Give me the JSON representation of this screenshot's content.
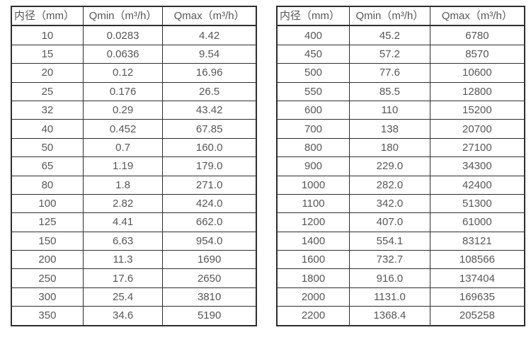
{
  "colors": {
    "background": "#ffffff",
    "border": "#2e2e2e",
    "text": "#575757"
  },
  "tables": [
    {
      "name": "flow-rate-table-small-diameters",
      "headers": [
        "内径（mm）",
        "Qmin（m³/h）",
        "Qmax（m³/h）"
      ],
      "rows": [
        [
          "10",
          "0.0283",
          "4.42"
        ],
        [
          "15",
          "0.0636",
          "9.54"
        ],
        [
          "20",
          "0.12",
          "16.96"
        ],
        [
          "25",
          "0.176",
          "26.5"
        ],
        [
          "32",
          "0.29",
          "43.42"
        ],
        [
          "40",
          "0.452",
          "67.85"
        ],
        [
          "50",
          "0.7",
          "160.0"
        ],
        [
          "65",
          "1.19",
          "179.0"
        ],
        [
          "80",
          "1.8",
          "271.0"
        ],
        [
          "100",
          "2.82",
          "424.0"
        ],
        [
          "125",
          "4.41",
          "662.0"
        ],
        [
          "150",
          "6.63",
          "954.0"
        ],
        [
          "200",
          "11.3",
          "1690"
        ],
        [
          "250",
          "17.6",
          "2650"
        ],
        [
          "300",
          "25.4",
          "3810"
        ],
        [
          "350",
          "34.6",
          "5190"
        ]
      ]
    },
    {
      "name": "flow-rate-table-large-diameters",
      "headers": [
        "内径（mm）",
        "Qmin（m³/h）",
        "Qmax（m³/h）"
      ],
      "rows": [
        [
          "400",
          "45.2",
          "6780"
        ],
        [
          "450",
          "57.2",
          "8570"
        ],
        [
          "500",
          "77.6",
          "10600"
        ],
        [
          "550",
          "85.5",
          "12800"
        ],
        [
          "600",
          "110",
          "15200"
        ],
        [
          "700",
          "138",
          "20700"
        ],
        [
          "800",
          "180",
          "27100"
        ],
        [
          "900",
          "229.0",
          "34300"
        ],
        [
          "1000",
          "282.0",
          "42400"
        ],
        [
          "1100",
          "342.0",
          "51300"
        ],
        [
          "1200",
          "407.0",
          "61000"
        ],
        [
          "1400",
          "554.1",
          "83121"
        ],
        [
          "1600",
          "732.7",
          "108566"
        ],
        [
          "1800",
          "916.0",
          "137404"
        ],
        [
          "2000",
          "1131.0",
          "169635"
        ],
        [
          "2200",
          "1368.4",
          "205258"
        ]
      ]
    }
  ]
}
